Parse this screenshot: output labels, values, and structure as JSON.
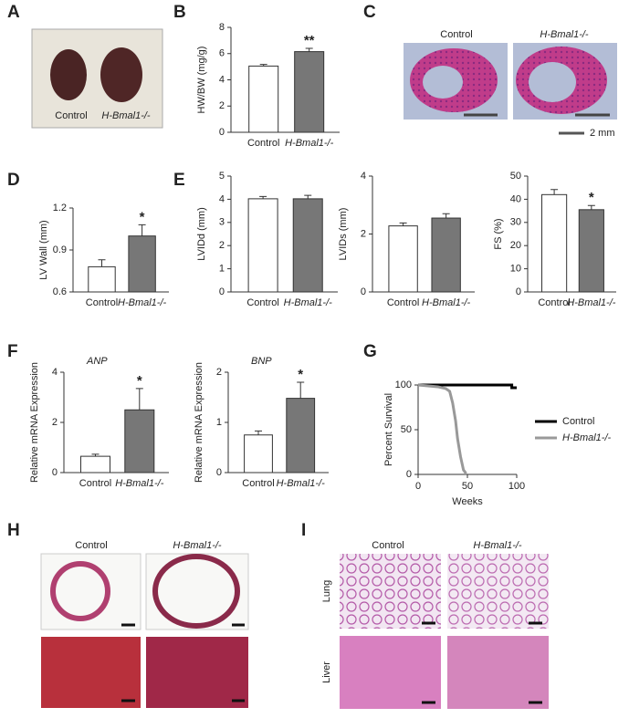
{
  "figure": {
    "panels": [
      "A",
      "B",
      "C",
      "D",
      "E",
      "F",
      "G",
      "H",
      "I"
    ],
    "photo_a": [
      "Control",
      "H-Bmal1-/-"
    ],
    "photo_c": [
      "Control",
      "H-Bmal1-/-"
    ],
    "scale_c": "2 mm",
    "photo_h": [
      "Control",
      "H-Bmal1-/-"
    ],
    "photo_i": [
      "Control",
      "H-Bmal1-/-"
    ],
    "rows_i": [
      "Lung",
      "Liver"
    ]
  },
  "chart_data": [
    {
      "type": "bar",
      "y_label": "HW/BW (mg/g)",
      "categories": [
        "Control",
        "H-Bmal1-/-"
      ],
      "values": [
        5.05,
        6.15
      ],
      "errors": [
        0.12,
        0.25
      ],
      "significance": [
        null,
        "**"
      ],
      "colors": [
        "#ffffff",
        "#777777"
      ],
      "ylim": [
        0,
        8
      ],
      "yticks": [
        0,
        2,
        4,
        6,
        8
      ]
    },
    {
      "type": "bar",
      "y_label": "LV Wall (mm)",
      "categories": [
        "Control",
        "H-Bmal1-/-"
      ],
      "values": [
        0.78,
        1.0
      ],
      "errors": [
        0.05,
        0.08
      ],
      "significance": [
        null,
        "*"
      ],
      "colors": [
        "#ffffff",
        "#777777"
      ],
      "ylim": [
        0.6,
        1.2
      ],
      "yticks": [
        0.6,
        0.9,
        1.2
      ]
    },
    {
      "type": "bar",
      "y_label": "LVIDd (mm)",
      "categories": [
        "Control",
        "H-Bmal1-/-"
      ],
      "values": [
        4.02,
        4.02
      ],
      "errors": [
        0.1,
        0.15
      ],
      "significance": [
        null,
        null
      ],
      "colors": [
        "#ffffff",
        "#777777"
      ],
      "ylim": [
        0,
        5
      ],
      "yticks": [
        0,
        1,
        2,
        3,
        4,
        5
      ]
    },
    {
      "type": "bar",
      "y_label": "LVIDs (mm)",
      "categories": [
        "Control",
        "H-Bmal1-/-"
      ],
      "values": [
        2.28,
        2.55
      ],
      "errors": [
        0.1,
        0.15
      ],
      "significance": [
        null,
        null
      ],
      "colors": [
        "#ffffff",
        "#777777"
      ],
      "ylim": [
        0,
        4
      ],
      "yticks": [
        0,
        2,
        4
      ]
    },
    {
      "type": "bar",
      "y_label": "FS (%)",
      "categories": [
        "Control",
        "H-Bmal1-/-"
      ],
      "values": [
        42,
        35.5
      ],
      "errors": [
        2.2,
        1.8
      ],
      "significance": [
        null,
        "*"
      ],
      "colors": [
        "#ffffff",
        "#777777"
      ],
      "ylim": [
        0,
        50
      ],
      "yticks": [
        0,
        10,
        20,
        30,
        40,
        50
      ]
    },
    {
      "type": "bar",
      "title": "ANP",
      "y_label": "Relative mRNA Expression",
      "categories": [
        "Control",
        "H-Bmal1-/-"
      ],
      "values": [
        0.65,
        2.5
      ],
      "errors": [
        0.08,
        0.85
      ],
      "significance": [
        null,
        "*"
      ],
      "colors": [
        "#ffffff",
        "#777777"
      ],
      "ylim": [
        0,
        4
      ],
      "yticks": [
        0,
        2,
        4
      ]
    },
    {
      "type": "bar",
      "title": "BNP",
      "y_label": "Relative mRNA Expression",
      "categories": [
        "Control",
        "H-Bmal1-/-"
      ],
      "values": [
        0.75,
        1.48
      ],
      "errors": [
        0.08,
        0.32
      ],
      "significance": [
        null,
        "*"
      ],
      "colors": [
        "#ffffff",
        "#777777"
      ],
      "ylim": [
        0,
        2
      ],
      "yticks": [
        0,
        1,
        2
      ]
    },
    {
      "type": "line",
      "x_label": "Weeks",
      "y_label": "Percent Survival",
      "xlim": [
        0,
        100
      ],
      "xticks": [
        0,
        50,
        100
      ],
      "ylim": [
        0,
        100
      ],
      "yticks": [
        0,
        50,
        100
      ],
      "legend": "right",
      "series": [
        {
          "name": "Control",
          "color": "#000000",
          "x": [
            0,
            95,
            95,
            100
          ],
          "values": [
            100,
            100,
            97,
            97
          ]
        },
        {
          "name": "H-Bmal1-/-",
          "color": "#999999",
          "x": [
            0,
            20,
            28,
            32,
            35,
            38,
            40,
            43,
            46,
            48,
            48
          ],
          "values": [
            100,
            98,
            96,
            93,
            80,
            60,
            40,
            20,
            5,
            2,
            0
          ]
        }
      ]
    }
  ]
}
